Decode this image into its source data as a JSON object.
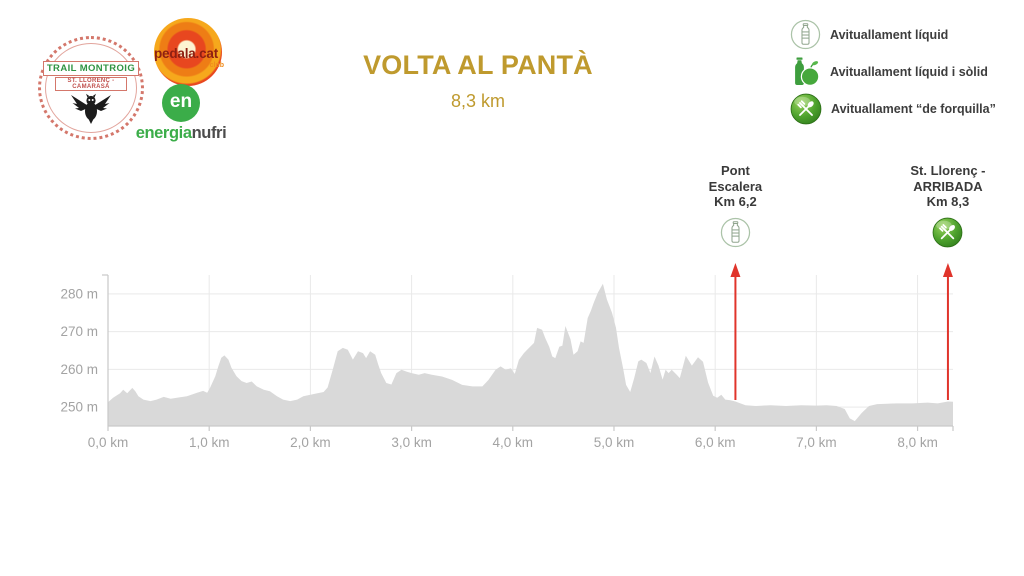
{
  "header": {
    "title": "VOLTA AL PANTÀ",
    "subtitle": "8,3 km",
    "logos": {
      "trail_montroig": {
        "line1": "TRAIL MONTROIG",
        "line2": "ST. LLORENÇ - CAMARASA"
      },
      "pedala": {
        "name": "pedala.cat",
        "sub": "club"
      },
      "nufri": {
        "mark": "en",
        "word1": "energia",
        "word2": "nufri"
      }
    }
  },
  "legend": {
    "items": [
      {
        "icon": "bottle-circle-icon",
        "label": "Avituallament líquid"
      },
      {
        "icon": "bottle-apple-icon",
        "label": "Avituallament líquid i sòlid"
      },
      {
        "icon": "fork-circle-icon",
        "label": "Avituallament “de forquilla”"
      }
    ]
  },
  "markers": [
    {
      "km": 6.2,
      "icon": "bottle-circle-icon",
      "lines": [
        "Pont",
        "Escalera",
        "Km 6,2"
      ]
    },
    {
      "km": 8.3,
      "icon": "fork-circle-icon",
      "lines": [
        "St. Llorenç -",
        "ARRIBADA",
        "Km 8,3"
      ]
    }
  ],
  "colors": {
    "title_gold": "#bf9a2e",
    "arrow_red": "#e0342b",
    "profile_fill": "#d9d9d9",
    "axis_text": "#a3a3a3",
    "legend_green": "#3e9e3e",
    "nufri_green": "#3bad49"
  },
  "chart_data": {
    "type": "area",
    "title": "Elevation profile - Volta al Pantà",
    "x_unit": "km",
    "y_unit": "m",
    "xlim": [
      0,
      8.35
    ],
    "ylim": [
      245,
      285
    ],
    "grid": true,
    "legend_position": "none",
    "x_ticks": [
      {
        "v": 0,
        "label": "0,0 km"
      },
      {
        "v": 1,
        "label": "1,0 km"
      },
      {
        "v": 2,
        "label": "2,0 km"
      },
      {
        "v": 3,
        "label": "3,0 km"
      },
      {
        "v": 4,
        "label": "4,0 km"
      },
      {
        "v": 5,
        "label": "5,0 km"
      },
      {
        "v": 6,
        "label": "6,0 km"
      },
      {
        "v": 7,
        "label": "7,0 km"
      },
      {
        "v": 8,
        "label": "8,0 km"
      }
    ],
    "y_ticks": [
      {
        "v": 250,
        "label": "250 m"
      },
      {
        "v": 260,
        "label": "260 m"
      },
      {
        "v": 270,
        "label": "270 m"
      },
      {
        "v": 280,
        "label": "280 m"
      }
    ],
    "points": [
      [
        0,
        251.3
      ],
      [
        0.05,
        252.5
      ],
      [
        0.12,
        253.7
      ],
      [
        0.15,
        254.6
      ],
      [
        0.19,
        253.7
      ],
      [
        0.24,
        255.1
      ],
      [
        0.27,
        254.2
      ],
      [
        0.3,
        252.9
      ],
      [
        0.35,
        252
      ],
      [
        0.42,
        251.6
      ],
      [
        0.48,
        252
      ],
      [
        0.55,
        252.7
      ],
      [
        0.62,
        252.2
      ],
      [
        0.68,
        252.5
      ],
      [
        0.78,
        252.9
      ],
      [
        0.88,
        253.8
      ],
      [
        0.94,
        254.3
      ],
      [
        0.98,
        253.8
      ],
      [
        1.01,
        255.2
      ],
      [
        1.06,
        258.2
      ],
      [
        1.09,
        260.8
      ],
      [
        1.12,
        263.1
      ],
      [
        1.15,
        263.7
      ],
      [
        1.19,
        262.6
      ],
      [
        1.22,
        260.4
      ],
      [
        1.27,
        258.2
      ],
      [
        1.32,
        256.9
      ],
      [
        1.37,
        256.4
      ],
      [
        1.42,
        256.8
      ],
      [
        1.47,
        255.5
      ],
      [
        1.54,
        254.6
      ],
      [
        1.6,
        254.2
      ],
      [
        1.67,
        252.9
      ],
      [
        1.73,
        252
      ],
      [
        1.8,
        251.6
      ],
      [
        1.87,
        252
      ],
      [
        1.93,
        252.9
      ],
      [
        2,
        253.3
      ],
      [
        2.07,
        253.7
      ],
      [
        2.13,
        254
      ],
      [
        2.17,
        255.2
      ],
      [
        2.22,
        259.9
      ],
      [
        2.27,
        264.8
      ],
      [
        2.32,
        265.7
      ],
      [
        2.37,
        265.2
      ],
      [
        2.42,
        262.6
      ],
      [
        2.47,
        264.8
      ],
      [
        2.52,
        264.3
      ],
      [
        2.55,
        263
      ],
      [
        2.59,
        264.8
      ],
      [
        2.64,
        263.9
      ],
      [
        2.67,
        261.3
      ],
      [
        2.7,
        259
      ],
      [
        2.75,
        256.4
      ],
      [
        2.8,
        256
      ],
      [
        2.85,
        259
      ],
      [
        2.9,
        259.9
      ],
      [
        2.95,
        259.4
      ],
      [
        3,
        259
      ],
      [
        3.07,
        258.6
      ],
      [
        3.13,
        259
      ],
      [
        3.2,
        258.6
      ],
      [
        3.3,
        258.1
      ],
      [
        3.4,
        257.2
      ],
      [
        3.5,
        255.9
      ],
      [
        3.6,
        255.5
      ],
      [
        3.7,
        255.5
      ],
      [
        3.76,
        257.2
      ],
      [
        3.83,
        259.9
      ],
      [
        3.88,
        260.8
      ],
      [
        3.93,
        259.9
      ],
      [
        3.98,
        260.3
      ],
      [
        4.02,
        258.8
      ],
      [
        4.06,
        262.5
      ],
      [
        4.11,
        264.3
      ],
      [
        4.16,
        265.7
      ],
      [
        4.21,
        267
      ],
      [
        4.24,
        271
      ],
      [
        4.29,
        270.5
      ],
      [
        4.32,
        268.3
      ],
      [
        4.36,
        266
      ],
      [
        4.39,
        263.4
      ],
      [
        4.42,
        263
      ],
      [
        4.46,
        266
      ],
      [
        4.49,
        266.3
      ],
      [
        4.52,
        271.5
      ],
      [
        4.57,
        268
      ],
      [
        4.6,
        263.9
      ],
      [
        4.64,
        264.8
      ],
      [
        4.67,
        267.4
      ],
      [
        4.7,
        267
      ],
      [
        4.74,
        273.6
      ],
      [
        4.77,
        275.4
      ],
      [
        4.8,
        277.6
      ],
      [
        4.84,
        280.3
      ],
      [
        4.89,
        282.7
      ],
      [
        4.93,
        278.5
      ],
      [
        4.98,
        275
      ],
      [
        5.02,
        271
      ],
      [
        5.05,
        265.7
      ],
      [
        5.09,
        260.3
      ],
      [
        5.12,
        255.9
      ],
      [
        5.16,
        254
      ],
      [
        5.2,
        257.7
      ],
      [
        5.24,
        262.1
      ],
      [
        5.27,
        262.6
      ],
      [
        5.32,
        261.7
      ],
      [
        5.36,
        259
      ],
      [
        5.4,
        263.4
      ],
      [
        5.44,
        261
      ],
      [
        5.48,
        257.3
      ],
      [
        5.51,
        259.9
      ],
      [
        5.54,
        259
      ],
      [
        5.57,
        259.9
      ],
      [
        5.62,
        258.6
      ],
      [
        5.65,
        257.7
      ],
      [
        5.71,
        263.6
      ],
      [
        5.77,
        261
      ],
      [
        5.83,
        263.2
      ],
      [
        5.88,
        262
      ],
      [
        5.93,
        256.5
      ],
      [
        5.98,
        253
      ],
      [
        6.02,
        252.5
      ],
      [
        6.06,
        253.3
      ],
      [
        6.1,
        252
      ],
      [
        6.15,
        251.8
      ],
      [
        6.2,
        251.5
      ],
      [
        6.3,
        250.5
      ],
      [
        6.4,
        250.3
      ],
      [
        6.55,
        250.5
      ],
      [
        6.7,
        250.3
      ],
      [
        6.85,
        250.5
      ],
      [
        7,
        250.4
      ],
      [
        7.1,
        250.5
      ],
      [
        7.2,
        250.3
      ],
      [
        7.28,
        249.5
      ],
      [
        7.33,
        247
      ],
      [
        7.38,
        246.3
      ],
      [
        7.45,
        248.5
      ],
      [
        7.52,
        250.3
      ],
      [
        7.6,
        250.8
      ],
      [
        7.7,
        250.9
      ],
      [
        7.8,
        251
      ],
      [
        7.95,
        251
      ],
      [
        8.1,
        251.2
      ],
      [
        8.2,
        251
      ],
      [
        8.3,
        251.5
      ],
      [
        8.35,
        251.4
      ]
    ]
  }
}
